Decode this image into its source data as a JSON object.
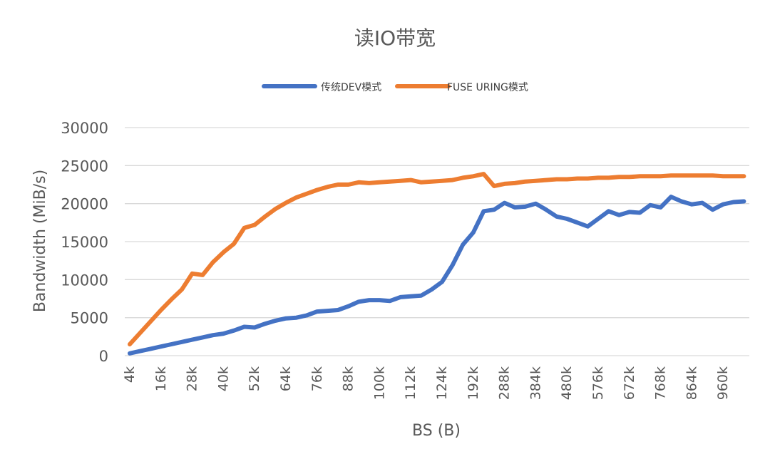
{
  "chart_data": {
    "type": "line",
    "title": "读IO带宽",
    "xlabel": "BS (B)",
    "ylabel": "Bandwidth (MiB/s)",
    "ylim": [
      0,
      30000
    ],
    "yticks": [
      0,
      5000,
      10000,
      15000,
      20000,
      25000,
      30000
    ],
    "grid": true,
    "legend_position": "top",
    "x": [
      "4k",
      "8k",
      "12k",
      "16k",
      "20k",
      "24k",
      "28k",
      "32k",
      "36k",
      "40k",
      "44k",
      "48k",
      "52k",
      "56k",
      "60k",
      "64k",
      "68k",
      "72k",
      "76k",
      "80k",
      "84k",
      "88k",
      "92k",
      "96k",
      "100k",
      "104k",
      "108k",
      "112k",
      "116k",
      "120k",
      "124k",
      "128k",
      "160k",
      "192k",
      "224k",
      "256k",
      "288k",
      "320k",
      "352k",
      "384k",
      "416k",
      "448k",
      "480k",
      "512k",
      "544k",
      "576k",
      "608k",
      "640k",
      "672k",
      "704k",
      "736k",
      "768k",
      "800k",
      "832k",
      "864k",
      "896k",
      "928k",
      "960k",
      "992k",
      "1024k"
    ],
    "xticks_shown": [
      "4k",
      "16k",
      "28k",
      "40k",
      "52k",
      "64k",
      "76k",
      "88k",
      "100k",
      "112k",
      "124k",
      "192k",
      "288k",
      "384k",
      "480k",
      "576k",
      "672k",
      "768k",
      "864k",
      "960k"
    ],
    "series": [
      {
        "name": "传统DEV模式",
        "color": "#4472C4",
        "values": [
          300,
          600,
          900,
          1200,
          1500,
          1800,
          2100,
          2400,
          2700,
          2900,
          3300,
          3800,
          3700,
          4200,
          4600,
          4900,
          5000,
          5300,
          5800,
          5900,
          6000,
          6500,
          7100,
          7300,
          7300,
          7200,
          7700,
          7800,
          7900,
          8700,
          9700,
          11900,
          14600,
          16200,
          19000,
          19200,
          20100,
          19500,
          19600,
          20000,
          19200,
          18300,
          18000,
          17500,
          17000,
          18000,
          19000,
          18500,
          18900,
          18800,
          19800,
          19500,
          20900,
          20300,
          19900,
          20100,
          19200,
          19900,
          20200,
          20300
        ]
      },
      {
        "name": "FUSE URING模式",
        "color": "#ED7D31",
        "values": [
          1500,
          3000,
          4500,
          6000,
          7400,
          8700,
          10800,
          10600,
          12300,
          13600,
          14700,
          16800,
          17200,
          18300,
          19300,
          20100,
          20800,
          21300,
          21800,
          22200,
          22500,
          22500,
          22800,
          22700,
          22800,
          22900,
          23000,
          23100,
          22800,
          22900,
          23000,
          23100,
          23400,
          23600,
          23900,
          22300,
          22600,
          22700,
          22900,
          23000,
          23100,
          23200,
          23200,
          23300,
          23300,
          23400,
          23400,
          23500,
          23500,
          23600,
          23600,
          23600,
          23700,
          23700,
          23700,
          23700,
          23700,
          23600,
          23600,
          23600
        ]
      }
    ]
  }
}
